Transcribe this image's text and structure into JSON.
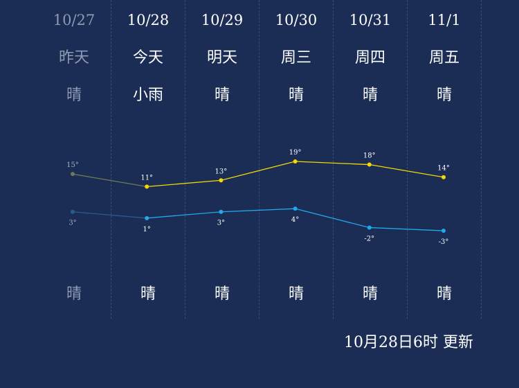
{
  "days": [
    {
      "date": "10/27",
      "name": "昨天",
      "day_condition": "晴",
      "night_condition": "晴",
      "past": true
    },
    {
      "date": "10/28",
      "name": "今天",
      "day_condition": "小雨",
      "night_condition": "晴",
      "past": false
    },
    {
      "date": "10/29",
      "name": "明天",
      "day_condition": "晴",
      "night_condition": "晴",
      "past": false
    },
    {
      "date": "10/30",
      "name": "周三",
      "day_condition": "晴",
      "night_condition": "晴",
      "past": false
    },
    {
      "date": "10/31",
      "name": "周四",
      "day_condition": "晴",
      "night_condition": "晴",
      "past": false
    },
    {
      "date": "11/1",
      "name": "周五",
      "day_condition": "晴",
      "night_condition": "晴",
      "past": false
    }
  ],
  "chart_data": {
    "type": "line",
    "categories": [
      "10/27",
      "10/28",
      "10/29",
      "10/30",
      "10/31",
      "11/1"
    ],
    "series": [
      {
        "key": "high",
        "values": [
          15,
          11,
          13,
          19,
          18,
          14
        ],
        "labels": [
          "15°",
          "11°",
          "13°",
          "19°",
          "18°",
          "14°"
        ],
        "color": "#f5d800"
      },
      {
        "key": "low",
        "values": [
          3,
          1,
          3,
          4,
          -2,
          -3
        ],
        "labels": [
          "3°",
          "1°",
          "3°",
          "4°",
          "-2°",
          "-3°"
        ],
        "color": "#22a9ec"
      }
    ],
    "past_color_high": "#6e7a52",
    "past_color_low": "#2b5b8e"
  },
  "footer": {
    "updated": "10月28日6时 更新"
  }
}
